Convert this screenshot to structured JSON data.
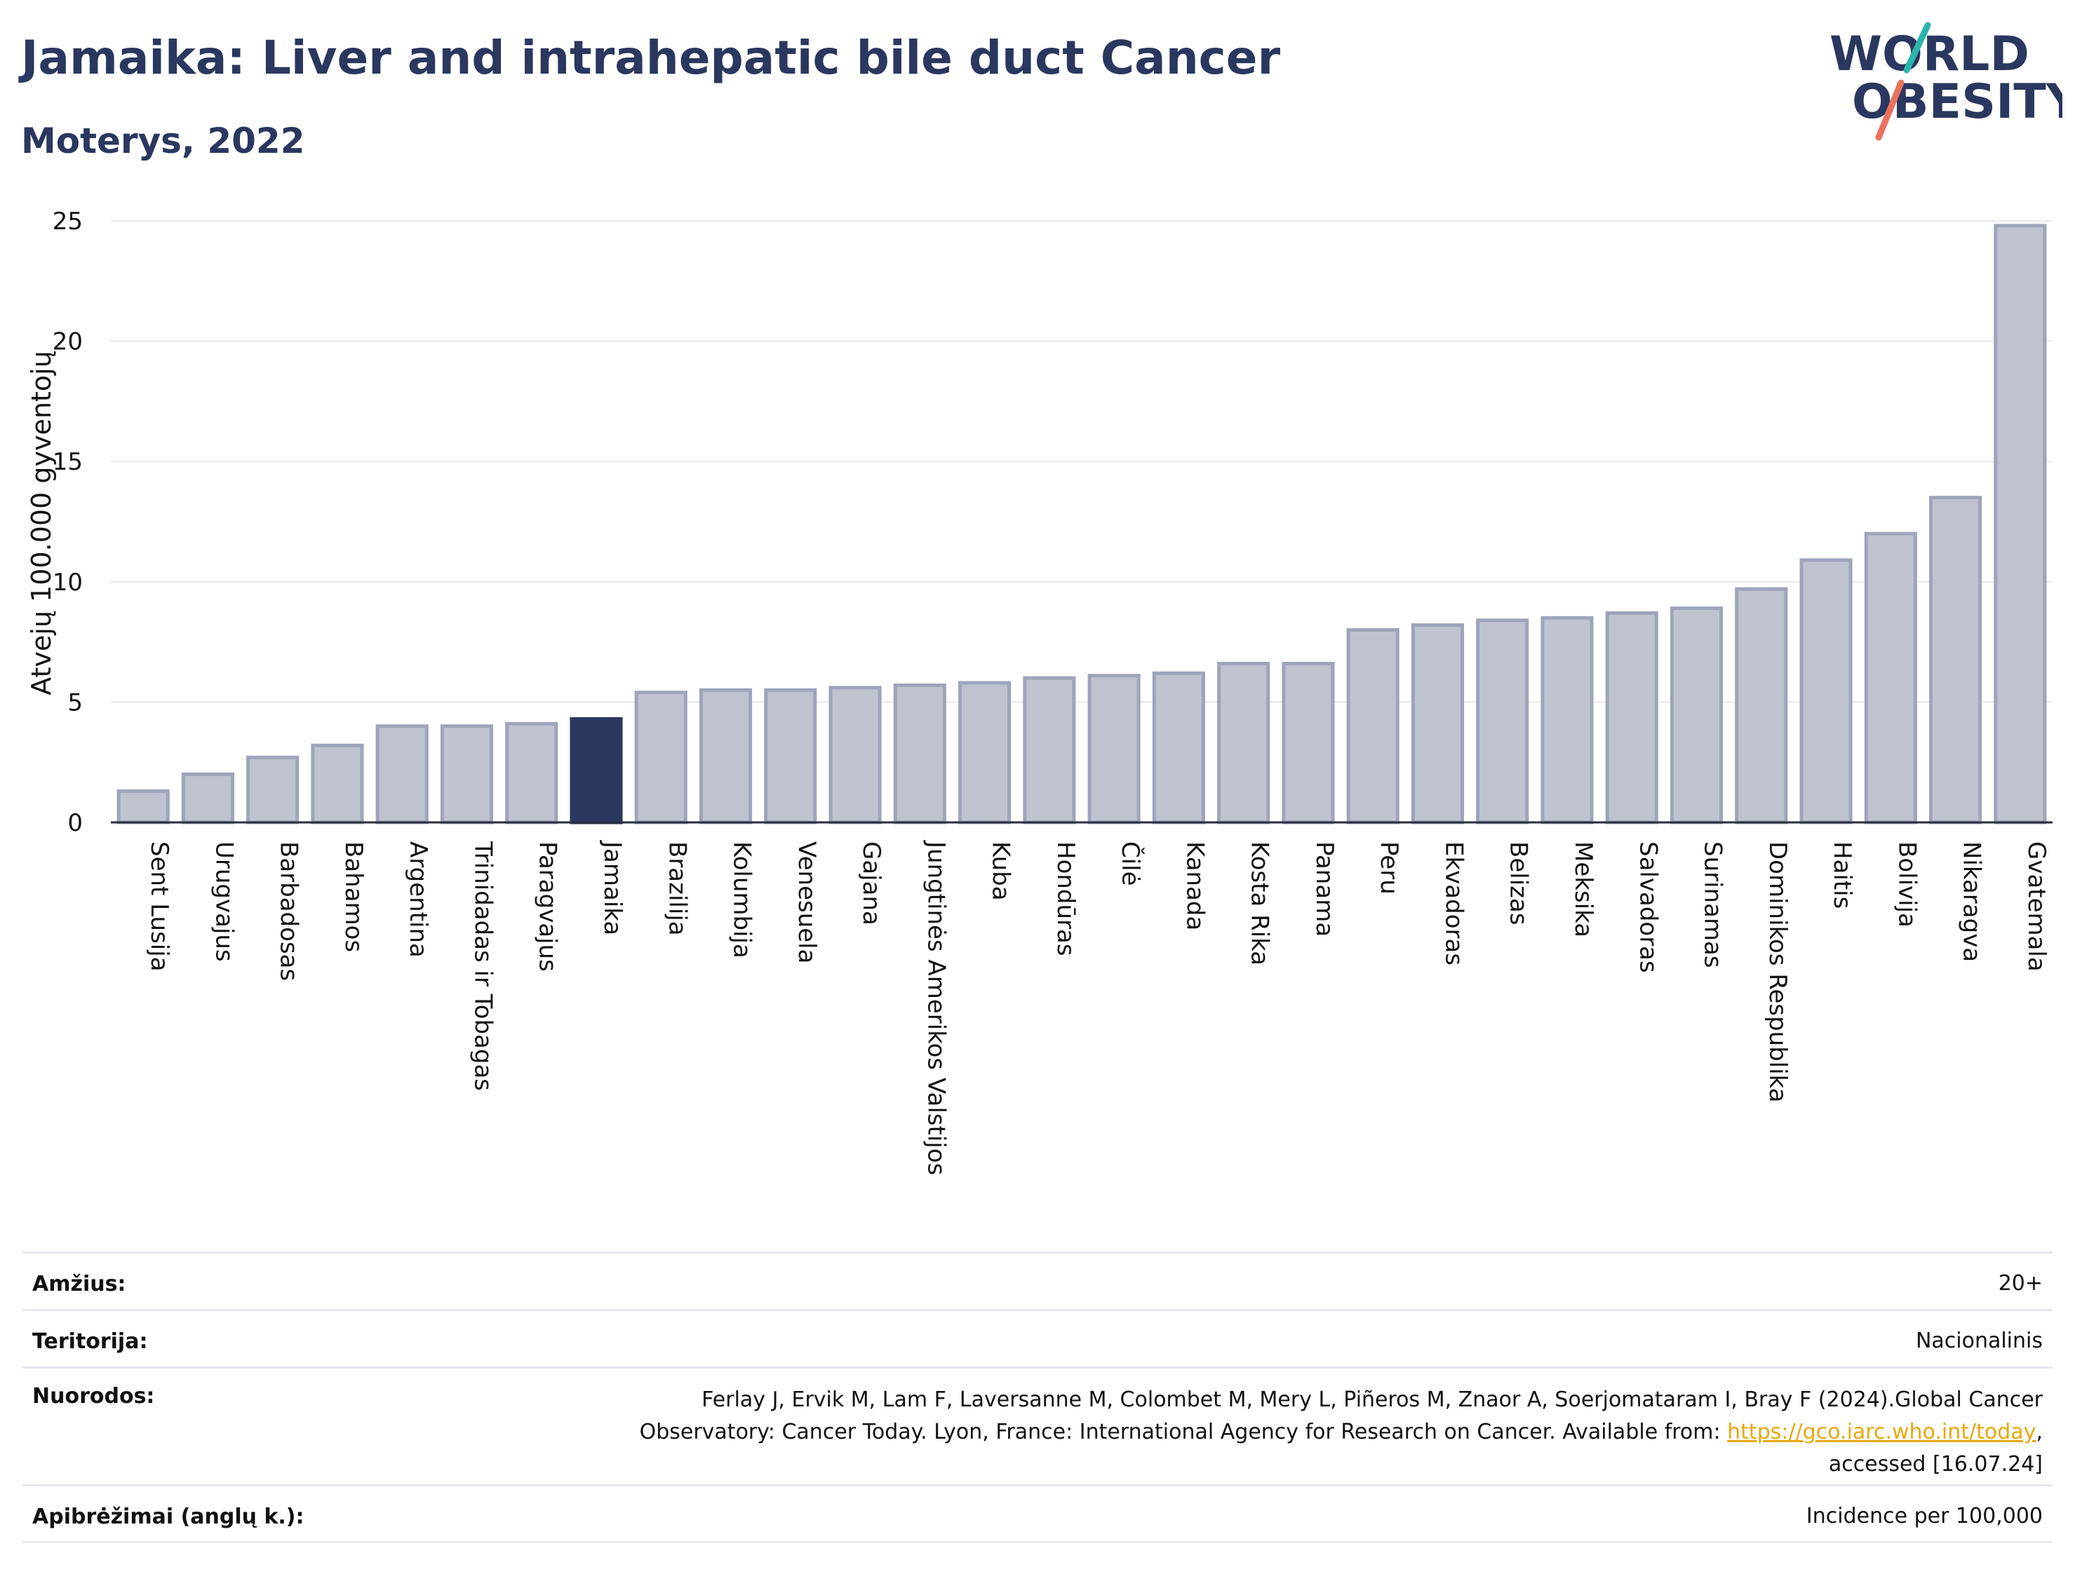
{
  "header": {
    "title": "Jamaika: Liver and intrahepatic bile duct Cancer",
    "subtitle": "Moterys, 2022"
  },
  "logo": {
    "line1": "WORLD",
    "line2": "OBESITY"
  },
  "chart_data": {
    "type": "bar",
    "ylabel": "Atvejų 100.000 gyventojų",
    "ylim": [
      0,
      25
    ],
    "yticks": [
      0,
      5,
      10,
      15,
      20,
      25
    ],
    "grid": true,
    "highlight": "Jamaika",
    "colors": {
      "bar": "#bfc3d0",
      "bar_edge": "#9ea4ba",
      "highlight": "#2a375f",
      "grid": "#e6e8ef"
    },
    "categories": [
      "Sent Lusija",
      "Urugvajus",
      "Barbadosas",
      "Bahamos",
      "Argentina",
      "Trinidadas ir Tobagas",
      "Paragvajus",
      "Jamaika",
      "Brazilija",
      "Kolumbija",
      "Venesuela",
      "Gajana",
      "Jungtinės Amerikos Valstijos",
      "Kuba",
      "Hondūras",
      "Čilė",
      "Kanada",
      "Kosta Rika",
      "Panama",
      "Peru",
      "Ekvadoras",
      "Belizas",
      "Meksika",
      "Salvadoras",
      "Surinamas",
      "Dominikos Respublika",
      "Haitis",
      "Bolivija",
      "Nikaragva",
      "Gvatemala"
    ],
    "values": [
      1.3,
      2.0,
      2.7,
      3.2,
      4.0,
      4.0,
      4.1,
      4.3,
      5.4,
      5.5,
      5.5,
      5.6,
      5.7,
      5.8,
      6.0,
      6.1,
      6.2,
      6.6,
      6.6,
      8.0,
      8.2,
      8.4,
      8.5,
      8.7,
      8.9,
      9.7,
      10.9,
      12.0,
      13.5,
      24.8
    ]
  },
  "footer": {
    "age_label": "Amžius:",
    "age_value": "20+",
    "territory_label": "Teritorija:",
    "territory_value": "Nacionalinis",
    "references_label": "Nuorodos:",
    "references_text_1": "Ferlay J, Ervik M, Lam F, Laversanne M, Colombet M, Mery L, Piñeros M, Znaor A, Soerjomataram I, Bray F (2024).Global Cancer",
    "references_text_2": "Observatory: Cancer Today. Lyon, France: International Agency for Research on Cancer. Available from:",
    "references_link": "https://gco.iarc.who.int/today",
    "references_text_3": ",",
    "references_text_4": "accessed [16.07.24]",
    "definitions_label": "Apibrėžimai (anglų k.):",
    "definitions_value": "Incidence per 100,000"
  }
}
